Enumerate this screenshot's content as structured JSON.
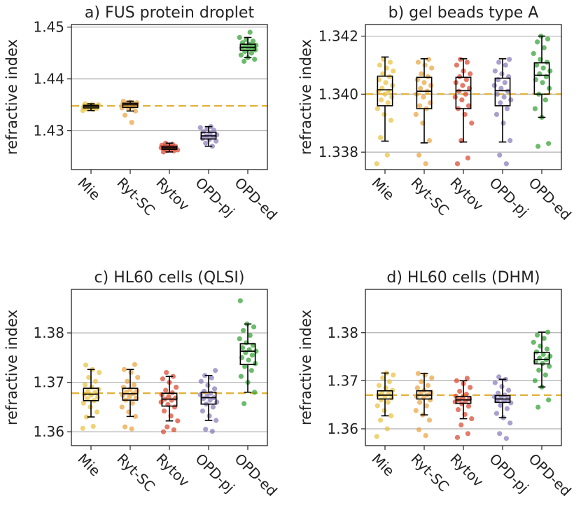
{
  "chart_data": [
    {
      "type": "box",
      "title": "a) FUS protein droplet",
      "xlabel": "",
      "ylabel": "refractive index",
      "ylim": [
        1.4225,
        1.4505
      ],
      "yticks": [
        "1.43",
        "1.44",
        "1.45"
      ],
      "categories": [
        "Mie",
        "Ryt-SC",
        "Rytov",
        "OPD-pj",
        "OPD-ed"
      ],
      "reference_line": 1.4348,
      "grid": "horizontal",
      "series": [
        {
          "name": "Mie",
          "color": "#e8c13a",
          "median": 1.4347,
          "q1": 1.4344,
          "q3": 1.4349,
          "whisker_low": 1.4339,
          "whisker_high": 1.4352,
          "points": [
            1.4339,
            1.4341,
            1.4342,
            1.4343,
            1.4344,
            1.4345,
            1.4346,
            1.4346,
            1.4347,
            1.4347,
            1.4348,
            1.4348,
            1.4349,
            1.435,
            1.4351,
            1.4352
          ]
        },
        {
          "name": "Ryt-SC",
          "color": "#e9a13b",
          "median": 1.435,
          "q1": 1.4345,
          "q3": 1.4353,
          "whisker_low": 1.4338,
          "whisker_high": 1.4357,
          "points": [
            1.4316,
            1.433,
            1.4338,
            1.4342,
            1.4344,
            1.4346,
            1.4348,
            1.4349,
            1.435,
            1.4351,
            1.4352,
            1.4353,
            1.4354,
            1.4355,
            1.4357
          ]
        },
        {
          "name": "Rytov",
          "color": "#d9432b",
          "median": 1.4267,
          "q1": 1.4264,
          "q3": 1.427,
          "whisker_low": 1.4259,
          "whisker_high": 1.4276,
          "points": [
            1.4259,
            1.4261,
            1.4262,
            1.4263,
            1.4264,
            1.4265,
            1.4266,
            1.4267,
            1.4267,
            1.4268,
            1.4269,
            1.427,
            1.4271,
            1.4272,
            1.4274,
            1.4276
          ]
        },
        {
          "name": "OPD-pj",
          "color": "#8878b8",
          "median": 1.429,
          "q1": 1.4284,
          "q3": 1.4297,
          "whisker_low": 1.427,
          "whisker_high": 1.4308,
          "points": [
            1.427,
            1.4276,
            1.428,
            1.4283,
            1.4285,
            1.4288,
            1.429,
            1.4292,
            1.4295,
            1.4298,
            1.4301,
            1.4304,
            1.4306,
            1.4308
          ]
        },
        {
          "name": "OPD-ed",
          "color": "#2e9e2e",
          "median": 1.4461,
          "q1": 1.4455,
          "q3": 1.4467,
          "whisker_low": 1.4441,
          "whisker_high": 1.448,
          "points": [
            1.4434,
            1.4438,
            1.4441,
            1.4446,
            1.445,
            1.4453,
            1.4456,
            1.4458,
            1.446,
            1.4461,
            1.4463,
            1.4465,
            1.4467,
            1.447,
            1.4473,
            1.4476,
            1.448,
            1.449
          ]
        }
      ]
    },
    {
      "type": "box",
      "title": "b) gel beads type A",
      "xlabel": "",
      "ylabel": "refractive index",
      "ylim": [
        1.3374,
        1.3424
      ],
      "yticks": [
        "1.338",
        "1.340",
        "1.342"
      ],
      "categories": [
        "Mie",
        "Ryt-SC",
        "Rytov",
        "OPD-pj",
        "OPD-ed"
      ],
      "reference_line": 1.34,
      "grid": "horizontal",
      "series": [
        {
          "name": "Mie",
          "color": "#e8c13a",
          "median": 1.34015,
          "q1": 1.3396,
          "q3": 1.34062,
          "whisker_low": 1.33838,
          "whisker_high": 1.34128,
          "points": [
            1.3376,
            1.3379,
            1.3385,
            1.3391,
            1.3393,
            1.3395,
            1.3397,
            1.3398,
            1.3399,
            1.34,
            1.3401,
            1.3401,
            1.3402,
            1.3403,
            1.3404,
            1.3405,
            1.3406,
            1.3407,
            1.3408,
            1.3409,
            1.341,
            1.3411,
            1.3412
          ]
        },
        {
          "name": "Ryt-SC",
          "color": "#e9a13b",
          "median": 1.3401,
          "q1": 1.3395,
          "q3": 1.34058,
          "whisker_low": 1.33832,
          "whisker_high": 1.34122,
          "points": [
            1.3376,
            1.3379,
            1.3384,
            1.339,
            1.3393,
            1.3395,
            1.3396,
            1.3397,
            1.3399,
            1.34,
            1.3401,
            1.3402,
            1.3403,
            1.3404,
            1.3405,
            1.3406,
            1.3407,
            1.3409,
            1.341,
            1.3411,
            1.3412
          ]
        },
        {
          "name": "Rytov",
          "color": "#d9432b",
          "median": 1.34012,
          "q1": 1.3395,
          "q3": 1.34058,
          "whisker_low": 1.33835,
          "whisker_high": 1.34122,
          "points": [
            1.3376,
            1.3378,
            1.3384,
            1.339,
            1.3393,
            1.3395,
            1.3396,
            1.3398,
            1.3399,
            1.34,
            1.3401,
            1.3402,
            1.3403,
            1.3404,
            1.3405,
            1.3406,
            1.3407,
            1.3408,
            1.341,
            1.3411,
            1.3412
          ]
        },
        {
          "name": "OPD-pj",
          "color": "#8878b8",
          "median": 1.34012,
          "q1": 1.3396,
          "q3": 1.34055,
          "whisker_low": 1.33835,
          "whisker_high": 1.34122,
          "points": [
            1.3376,
            1.3379,
            1.3384,
            1.339,
            1.3393,
            1.3395,
            1.3397,
            1.3398,
            1.3399,
            1.34,
            1.3401,
            1.3402,
            1.3403,
            1.3404,
            1.3405,
            1.3406,
            1.3407,
            1.3408,
            1.341,
            1.3411,
            1.3412
          ]
        },
        {
          "name": "OPD-ed",
          "color": "#2e9e2e",
          "median": 1.34065,
          "q1": 1.34,
          "q3": 1.34108,
          "whisker_low": 1.3392,
          "whisker_high": 1.342,
          "points": [
            1.3382,
            1.3383,
            1.3392,
            1.3395,
            1.3398,
            1.34,
            1.3402,
            1.3404,
            1.3405,
            1.3406,
            1.3407,
            1.3408,
            1.3409,
            1.341,
            1.3411,
            1.3412,
            1.3414,
            1.3416,
            1.3418,
            1.3419,
            1.342
          ]
        }
      ]
    },
    {
      "type": "box",
      "title": "c) HL60 cells (QLSI)",
      "xlabel": "",
      "ylabel": "refractive index",
      "ylim": [
        1.3572,
        1.3888
      ],
      "yticks": [
        "1.36",
        "1.37",
        "1.38"
      ],
      "categories": [
        "Mie",
        "Ryt-SC",
        "Rytov",
        "OPD-pj",
        "OPD-ed"
      ],
      "reference_line": 1.3678,
      "grid": "horizontal",
      "series": [
        {
          "name": "Mie",
          "color": "#e8c13a",
          "median": 1.3676,
          "q1": 1.3663,
          "q3": 1.3688,
          "whisker_low": 1.363,
          "whisker_high": 1.3726,
          "points": [
            1.3607,
            1.3611,
            1.363,
            1.364,
            1.365,
            1.3658,
            1.3663,
            1.3667,
            1.367,
            1.3674,
            1.3676,
            1.3679,
            1.3682,
            1.3686,
            1.369,
            1.3695,
            1.3702,
            1.371,
            1.372,
            1.3726,
            1.3735
          ]
        },
        {
          "name": "Ryt-SC",
          "color": "#e9a13b",
          "median": 1.3677,
          "q1": 1.3664,
          "q3": 1.3688,
          "whisker_low": 1.3631,
          "whisker_high": 1.3726,
          "points": [
            1.3606,
            1.361,
            1.3631,
            1.364,
            1.365,
            1.3658,
            1.3664,
            1.3668,
            1.3671,
            1.3674,
            1.3677,
            1.368,
            1.3683,
            1.3686,
            1.369,
            1.3695,
            1.3702,
            1.371,
            1.372,
            1.3726,
            1.3736
          ]
        },
        {
          "name": "Rytov",
          "color": "#d9432b",
          "median": 1.3666,
          "q1": 1.3652,
          "q3": 1.3678,
          "whisker_low": 1.3622,
          "whisker_high": 1.3712,
          "points": [
            1.36,
            1.3604,
            1.361,
            1.3622,
            1.3632,
            1.3642,
            1.365,
            1.3655,
            1.366,
            1.3664,
            1.3666,
            1.3668,
            1.3671,
            1.3675,
            1.3679,
            1.3684,
            1.369,
            1.37,
            1.3707,
            1.3712,
            1.372
          ]
        },
        {
          "name": "OPD-pj",
          "color": "#8878b8",
          "median": 1.3669,
          "q1": 1.3656,
          "q3": 1.368,
          "whisker_low": 1.3623,
          "whisker_high": 1.3714,
          "points": [
            1.3601,
            1.3605,
            1.3623,
            1.3632,
            1.3642,
            1.365,
            1.3656,
            1.366,
            1.3664,
            1.3667,
            1.3669,
            1.3672,
            1.3675,
            1.3678,
            1.3682,
            1.3687,
            1.3694,
            1.3702,
            1.3709,
            1.3714,
            1.3724
          ]
        },
        {
          "name": "OPD-ed",
          "color": "#2e9e2e",
          "median": 1.3763,
          "q1": 1.3736,
          "q3": 1.3778,
          "whisker_low": 1.368,
          "whisker_high": 1.3818,
          "points": [
            1.3657,
            1.368,
            1.37,
            1.3712,
            1.3724,
            1.3732,
            1.3738,
            1.3745,
            1.375,
            1.3755,
            1.376,
            1.3763,
            1.3766,
            1.377,
            1.3775,
            1.378,
            1.3788,
            1.3795,
            1.3805,
            1.3812,
            1.3818,
            1.3865
          ]
        }
      ]
    },
    {
      "type": "box",
      "title": "d) HL60 cells (DHM)",
      "xlabel": "",
      "ylabel": "refractive index",
      "ylim": [
        1.3565,
        1.389
      ],
      "yticks": [
        "1.36",
        "1.37",
        "1.38"
      ],
      "categories": [
        "Mie",
        "Ryt-SC",
        "Rytov",
        "OPD-pj",
        "OPD-ed"
      ],
      "reference_line": 1.367,
      "grid": "horizontal",
      "series": [
        {
          "name": "Mie",
          "color": "#e8c13a",
          "median": 1.367,
          "q1": 1.3662,
          "q3": 1.3679,
          "whisker_low": 1.3627,
          "whisker_high": 1.3716,
          "points": [
            1.3584,
            1.36,
            1.3618,
            1.3627,
            1.3638,
            1.3648,
            1.3655,
            1.366,
            1.3664,
            1.3667,
            1.367,
            1.3673,
            1.3676,
            1.368,
            1.3685,
            1.369,
            1.3698,
            1.3706,
            1.3712,
            1.3716
          ]
        },
        {
          "name": "Ryt-SC",
          "color": "#e9a13b",
          "median": 1.367,
          "q1": 1.3662,
          "q3": 1.3679,
          "whisker_low": 1.3629,
          "whisker_high": 1.3715,
          "points": [
            1.3586,
            1.3598,
            1.3618,
            1.3629,
            1.3638,
            1.3648,
            1.3655,
            1.366,
            1.3664,
            1.3667,
            1.367,
            1.3673,
            1.3676,
            1.368,
            1.3685,
            1.369,
            1.3698,
            1.3706,
            1.3712,
            1.3715
          ]
        },
        {
          "name": "Rytov",
          "color": "#d9432b",
          "median": 1.366,
          "q1": 1.3653,
          "q3": 1.3667,
          "whisker_low": 1.3621,
          "whisker_high": 1.37,
          "points": [
            1.3582,
            1.359,
            1.3608,
            1.3621,
            1.363,
            1.364,
            1.3647,
            1.3652,
            1.3656,
            1.3658,
            1.366,
            1.3662,
            1.3665,
            1.3668,
            1.3672,
            1.3678,
            1.3686,
            1.3694,
            1.37,
            1.3705
          ]
        },
        {
          "name": "OPD-pj",
          "color": "#8878b8",
          "median": 1.3662,
          "q1": 1.3655,
          "q3": 1.3669,
          "whisker_low": 1.3623,
          "whisker_high": 1.3703,
          "points": [
            1.358,
            1.359,
            1.3612,
            1.3623,
            1.3632,
            1.3642,
            1.3649,
            1.3654,
            1.3658,
            1.366,
            1.3662,
            1.3664,
            1.3667,
            1.367,
            1.3674,
            1.368,
            1.3688,
            1.3696,
            1.3703,
            1.3708
          ]
        },
        {
          "name": "OPD-ed",
          "color": "#2e9e2e",
          "median": 1.3744,
          "q1": 1.3735,
          "q3": 1.3759,
          "whisker_low": 1.3687,
          "whisker_high": 1.3801,
          "points": [
            1.3645,
            1.366,
            1.3687,
            1.37,
            1.3712,
            1.3722,
            1.373,
            1.3736,
            1.374,
            1.3744,
            1.3747,
            1.3751,
            1.3755,
            1.376,
            1.3766,
            1.3772,
            1.378,
            1.3788,
            1.3795,
            1.3801
          ]
        }
      ]
    }
  ]
}
